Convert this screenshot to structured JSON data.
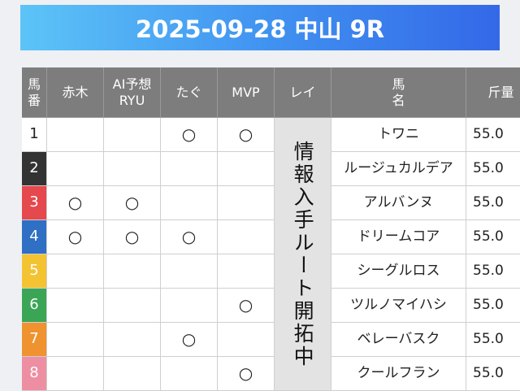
{
  "header": {
    "title": "2025-09-28 中山 9R"
  },
  "table": {
    "columns": [
      "馬\n番",
      "赤木",
      "AI予想\nRYU",
      "たぐ",
      "MVP",
      "レイ",
      "馬\n名",
      "斤量"
    ],
    "rei_note": "情報入手ルート開拓中",
    "rows": [
      {
        "number": "1",
        "color": "#ffffff",
        "text_color": "#222222",
        "marks": [
          null,
          null,
          "○",
          "○"
        ],
        "name": "トワニ",
        "weight": "55.0"
      },
      {
        "number": "2",
        "color": "#333333",
        "text_color": "#ffffff",
        "marks": [
          null,
          null,
          null,
          null
        ],
        "name": "ルージュカルデア",
        "weight": "55.0"
      },
      {
        "number": "3",
        "color": "#e5484d",
        "text_color": "#ffffff",
        "marks": [
          "○",
          "○",
          null,
          null
        ],
        "name": "アルバンヌ",
        "weight": "55.0"
      },
      {
        "number": "4",
        "color": "#2f6fc4",
        "text_color": "#ffffff",
        "marks": [
          "○",
          "○",
          "○",
          null
        ],
        "name": "ドリームコア",
        "weight": "55.0"
      },
      {
        "number": "5",
        "color": "#f3c332",
        "text_color": "#ffffff",
        "marks": [
          null,
          null,
          null,
          null
        ],
        "name": "シーグルロス",
        "weight": "55.0"
      },
      {
        "number": "6",
        "color": "#3ba556",
        "text_color": "#ffffff",
        "marks": [
          null,
          null,
          null,
          "○"
        ],
        "name": "ツルノマイハシ",
        "weight": "55.0"
      },
      {
        "number": "7",
        "color": "#ef9230",
        "text_color": "#ffffff",
        "marks": [
          null,
          null,
          "○",
          null
        ],
        "name": "ベレーバスク",
        "weight": "55.0"
      },
      {
        "number": "8",
        "color": "#ee8ea2",
        "text_color": "#ffffff",
        "marks": [
          null,
          null,
          null,
          "○"
        ],
        "name": "クールフラン",
        "weight": "55.0"
      }
    ]
  }
}
